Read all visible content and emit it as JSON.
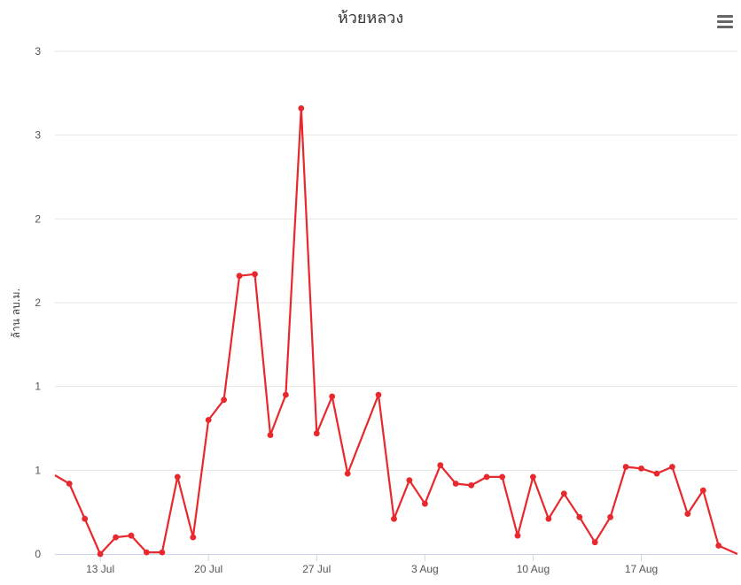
{
  "chart_data": {
    "type": "line",
    "title": "ห้วยหลวง",
    "ylabel": "ล้าน ลบ.ม.",
    "xlabel": "",
    "ylim": [
      0,
      3
    ],
    "yticks": [
      0,
      0.5,
      1,
      1.5,
      2,
      2.5,
      3
    ],
    "ytick_labels": [
      "0",
      "1",
      "1",
      "2",
      "2",
      "3",
      "3"
    ],
    "x_start": "2020-07-10",
    "xticks": [
      {
        "date": "2020-07-13",
        "label": "13 Jul"
      },
      {
        "date": "2020-07-20",
        "label": "20 Jul"
      },
      {
        "date": "2020-07-27",
        "label": "27 Jul"
      },
      {
        "date": "2020-08-03",
        "label": "3 Aug"
      },
      {
        "date": "2020-08-10",
        "label": "10 Aug"
      },
      {
        "date": "2020-08-17",
        "label": "17 Aug"
      }
    ],
    "color": "#e8282c",
    "grid": true,
    "legend": "none",
    "series": [
      {
        "x": [
          "2020-07-11",
          "2020-07-12",
          "2020-07-13",
          "2020-07-14",
          "2020-07-15",
          "2020-07-16",
          "2020-07-17",
          "2020-07-18",
          "2020-07-19",
          "2020-07-20",
          "2020-07-21",
          "2020-07-22",
          "2020-07-23",
          "2020-07-24",
          "2020-07-25",
          "2020-07-26",
          "2020-07-27",
          "2020-07-28",
          "2020-07-29",
          "2020-07-31",
          "2020-08-01",
          "2020-08-02",
          "2020-08-03",
          "2020-08-04",
          "2020-08-05",
          "2020-08-06",
          "2020-08-07",
          "2020-08-08",
          "2020-08-09",
          "2020-08-10",
          "2020-08-11",
          "2020-08-12",
          "2020-08-13",
          "2020-08-14",
          "2020-08-15",
          "2020-08-16",
          "2020-08-17",
          "2020-08-18",
          "2020-08-19",
          "2020-08-20",
          "2020-08-21",
          "2020-08-22"
        ],
        "values": [
          0.42,
          0.21,
          0.0,
          0.1,
          0.11,
          0.01,
          0.01,
          0.46,
          0.1,
          0.8,
          0.92,
          1.66,
          1.67,
          0.71,
          0.95,
          2.66,
          0.72,
          0.94,
          0.48,
          0.95,
          0.21,
          0.44,
          0.3,
          0.53,
          0.42,
          0.41,
          0.46,
          0.46,
          0.11,
          0.46,
          0.21,
          0.36,
          0.22,
          0.07,
          0.22,
          0.52,
          0.51,
          0.48,
          0.52,
          0.24,
          0.38,
          0.05
        ]
      }
    ]
  },
  "ui": {
    "menu_icon": "hamburger-menu-icon"
  }
}
